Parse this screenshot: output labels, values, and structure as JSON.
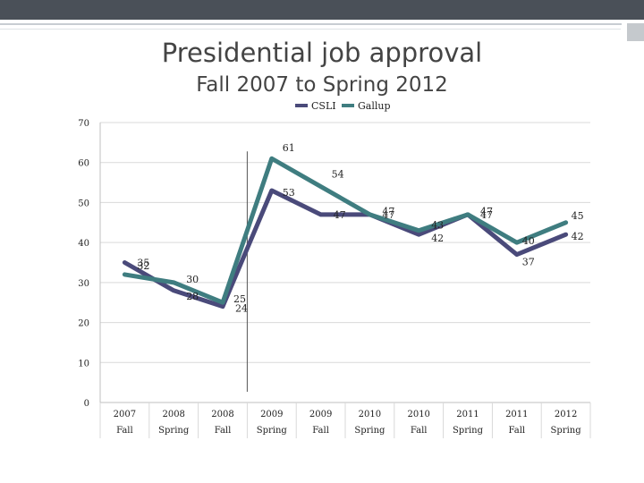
{
  "slide": {
    "title": "Presidential job approval",
    "subtitle": "Fall 2007 to Spring 2012"
  },
  "chart_data": {
    "type": "line",
    "x": [
      "2007 Fall",
      "2008 Spring",
      "2008 Fall",
      "2009 Spring",
      "2009 Fall",
      "2010 Spring",
      "2010 Fall",
      "2011 Spring",
      "2011 Fall",
      "2012 Spring"
    ],
    "x_year": [
      "2007",
      "2008",
      "2008",
      "2009",
      "2009",
      "2010",
      "2010",
      "2011",
      "2011",
      "2012"
    ],
    "x_term": [
      "Fall",
      "Spring",
      "Fall",
      "Spring",
      "Fall",
      "Spring",
      "Fall",
      "Spring",
      "Fall",
      "Spring"
    ],
    "ylim": [
      0,
      70
    ],
    "yticks": [
      0,
      10,
      20,
      30,
      40,
      50,
      60,
      70
    ],
    "grid": true,
    "legend": "top-center",
    "vertical_marker_between": [
      "2008 Fall",
      "2009 Spring"
    ],
    "series": [
      {
        "name": "CSLI",
        "color": "#4a4a7a",
        "values": [
          35,
          28,
          24,
          53,
          47,
          47,
          42,
          47,
          37,
          42
        ],
        "labels": [
          "35",
          "28",
          "24",
          "53",
          "47",
          "47",
          "42",
          "47",
          "37",
          "42"
        ]
      },
      {
        "name": "Gallup",
        "color": "#3f7d80",
        "values": [
          32,
          30,
          25,
          61,
          54,
          47,
          43,
          47,
          40,
          45
        ],
        "labels": [
          "32",
          "30",
          "25",
          "61",
          "54",
          "47",
          "43",
          "47",
          "40",
          "45"
        ]
      }
    ]
  }
}
